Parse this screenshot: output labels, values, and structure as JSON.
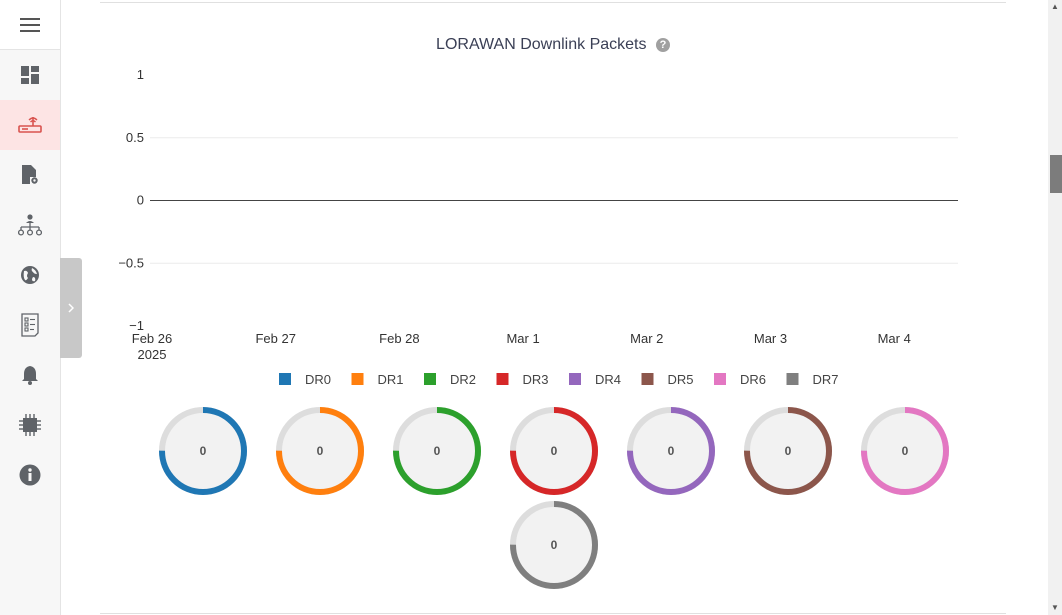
{
  "sidebar": {
    "items": [
      {
        "icon": "dashboard-icon",
        "active": false
      },
      {
        "icon": "router-icon",
        "active": true
      },
      {
        "icon": "file-settings-icon",
        "active": false
      },
      {
        "icon": "network-tree-icon",
        "active": false
      },
      {
        "icon": "globe-icon",
        "active": false
      },
      {
        "icon": "checklist-icon",
        "active": false
      },
      {
        "icon": "bell-icon",
        "active": false
      },
      {
        "icon": "chip-icon",
        "active": false
      },
      {
        "icon": "info-icon",
        "active": false
      }
    ],
    "active_color": "#d9534f"
  },
  "chart": {
    "title": "LORAWAN Downlink Packets",
    "help_icon": "?"
  },
  "chart_data": {
    "type": "line",
    "x": [
      "Feb 26",
      "Feb 27",
      "Feb 28",
      "Mar 1",
      "Mar 2",
      "Mar 3",
      "Mar 4"
    ],
    "x_sublabel_first": "2025",
    "yticks": [
      "1",
      "0.5",
      "0",
      "−0.5",
      "−1"
    ],
    "ylim": [
      -1,
      1
    ],
    "series": [
      {
        "name": "DR0",
        "color": "#1f77b4",
        "values": [
          0,
          0,
          0,
          0,
          0,
          0,
          0
        ]
      },
      {
        "name": "DR1",
        "color": "#ff7f0e",
        "values": [
          0,
          0,
          0,
          0,
          0,
          0,
          0
        ]
      },
      {
        "name": "DR2",
        "color": "#2ca02c",
        "values": [
          0,
          0,
          0,
          0,
          0,
          0,
          0
        ]
      },
      {
        "name": "DR3",
        "color": "#d62728",
        "values": [
          0,
          0,
          0,
          0,
          0,
          0,
          0
        ]
      },
      {
        "name": "DR4",
        "color": "#9467bd",
        "values": [
          0,
          0,
          0,
          0,
          0,
          0,
          0
        ]
      },
      {
        "name": "DR5",
        "color": "#8c564b",
        "values": [
          0,
          0,
          0,
          0,
          0,
          0,
          0
        ]
      },
      {
        "name": "DR6",
        "color": "#e377c2",
        "values": [
          0,
          0,
          0,
          0,
          0,
          0,
          0
        ]
      },
      {
        "name": "DR7",
        "color": "#7f7f7f",
        "values": [
          0,
          0,
          0,
          0,
          0,
          0,
          0
        ]
      }
    ],
    "legend_position": "bottom",
    "totals": [
      "0",
      "0",
      "0",
      "0",
      "0",
      "0",
      "0",
      "0"
    ]
  }
}
